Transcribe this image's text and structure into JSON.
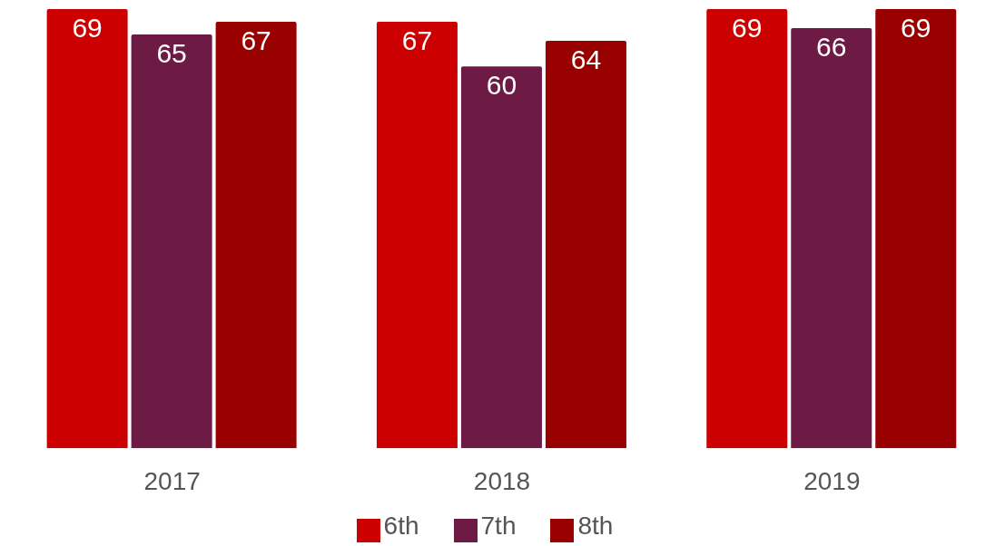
{
  "chart_data": {
    "type": "bar",
    "categories": [
      "2017",
      "2018",
      "2019"
    ],
    "series": [
      {
        "name": "6th",
        "color": "#cc0000",
        "values": [
          69,
          67,
          69
        ]
      },
      {
        "name": "7th",
        "color": "#6d1a45",
        "values": [
          65,
          60,
          66
        ]
      },
      {
        "name": "8th",
        "color": "#990000",
        "values": [
          67,
          64,
          69
        ]
      }
    ],
    "data_labels": true,
    "legend": "bottom",
    "grid": false
  }
}
